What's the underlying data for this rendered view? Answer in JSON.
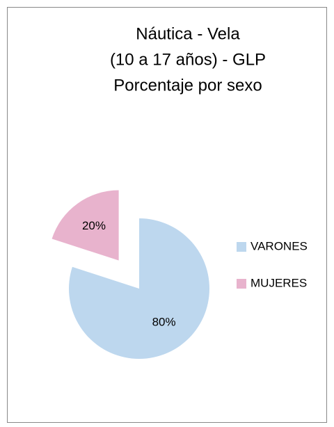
{
  "chart_data": {
    "type": "pie",
    "title": [
      "Náutica - Vela",
      "(10 a 17 años) - GLP",
      "Porcentaje por sexo"
    ],
    "categories": [
      "VARONES",
      "MUJERES"
    ],
    "values": [
      80,
      20
    ],
    "value_labels": [
      "80%",
      "20%"
    ],
    "colors": [
      "#bdd7ee",
      "#e8b3cd"
    ],
    "exploded": [
      false,
      true
    ],
    "legend": "right"
  }
}
